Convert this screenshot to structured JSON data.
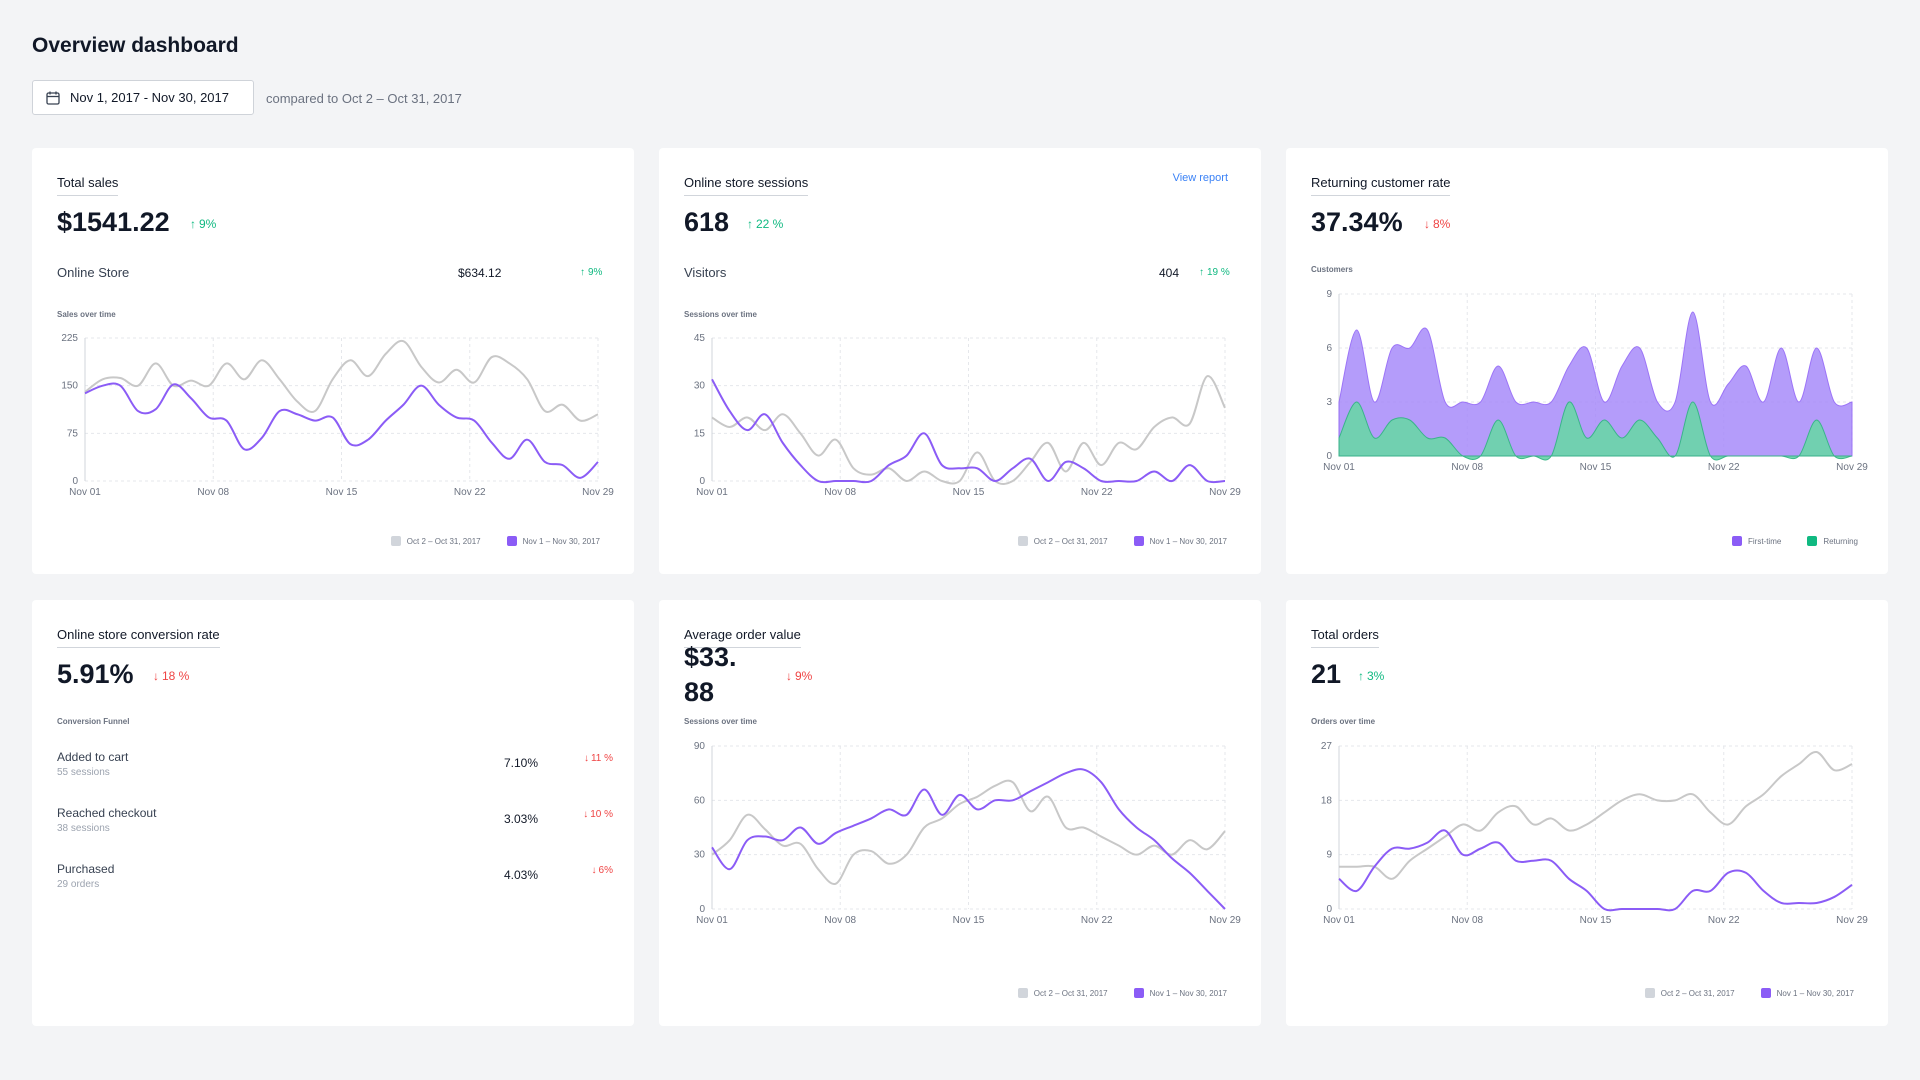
{
  "header": {
    "title": "Overview dashboard",
    "date_range": "Nov 1, 2017 - Nov 30, 2017",
    "compare": "compared to Oct 2 – Oct 31, 2017"
  },
  "colors": {
    "current": "#8b5cf6",
    "previous": "#c8c8c8",
    "first_time": "#a78bfa",
    "returning": "#6ed3ad",
    "up": "#10b981",
    "down": "#ef4444"
  },
  "total_sales": {
    "title": "Total sales",
    "value": "$1541.22",
    "delta": "9%",
    "row_label": "Online Store",
    "row_value": "$634.12",
    "row_delta": "9%",
    "chart_label": "Sales over time",
    "legend_prev": "Oct 2 – Oct 31, 2017",
    "legend_curr": "Nov 1 – Nov 30, 2017"
  },
  "sessions": {
    "title": "Online store sessions",
    "link": "View report",
    "value": "618",
    "delta": "22 %",
    "row_label": "Visitors",
    "row_value": "404",
    "row_delta": "19 %",
    "chart_label": "Sessions over time",
    "legend_prev": "Oct 2 – Oct 31, 2017",
    "legend_curr": "Nov 1 – Nov 30, 2017"
  },
  "returning": {
    "title": "Returning customer rate",
    "value": "37.34%",
    "delta": "8%",
    "chart_label": "Customers",
    "legend_first": "First-time",
    "legend_returning": "Returning"
  },
  "conversion": {
    "title": "Online store conversion rate",
    "value": "5.91%",
    "delta": "18 %",
    "funnel_label": "Conversion Funnel",
    "funnel": [
      {
        "name": "Added to cart",
        "sub": "55 sessions",
        "pct": "7.10%",
        "delta": "11 %"
      },
      {
        "name": "Reached checkout",
        "sub": "38 sessions",
        "pct": "3.03%",
        "delta": "10 %"
      },
      {
        "name": "Purchased",
        "sub": "29 orders",
        "pct": "4.03%",
        "delta": "6%"
      }
    ]
  },
  "aov": {
    "title": "Average order value",
    "value": "$33.88",
    "delta": "9%",
    "chart_label": "Sessions over time",
    "legend_prev": "Oct 2 – Oct 31, 2017",
    "legend_curr": "Nov 1 – Nov 30, 2017"
  },
  "orders": {
    "title": "Total orders",
    "value": "21",
    "delta": "3%",
    "chart_label": "Orders over time",
    "legend_prev": "Oct 2 – Oct 31, 2017",
    "legend_curr": "Nov 1 – Nov 30, 2017"
  },
  "chart_data": [
    {
      "id": "sales",
      "type": "line",
      "xlabel": "",
      "ylabel": "",
      "x_ticks": [
        "Nov 01",
        "Nov 08",
        "Nov 15",
        "Nov 22",
        "Nov 29"
      ],
      "y_ticks": [
        0,
        75,
        150,
        225
      ],
      "ylim": [
        0,
        225
      ],
      "series": [
        {
          "name": "Oct 2 – Oct 31, 2017",
          "values": [
            140,
            160,
            162,
            150,
            185,
            150,
            158,
            150,
            185,
            160,
            190,
            160,
            125,
            110,
            160,
            190,
            165,
            200,
            220,
            180,
            155,
            175,
            155,
            195,
            185,
            160,
            110,
            120,
            95,
            105
          ]
        },
        {
          "name": "Nov 1 – Nov 30, 2017",
          "values": [
            138,
            150,
            150,
            110,
            113,
            152,
            130,
            100,
            95,
            50,
            68,
            110,
            105,
            95,
            100,
            58,
            65,
            95,
            120,
            150,
            120,
            100,
            95,
            60,
            35,
            65,
            30,
            25,
            5,
            30
          ]
        }
      ]
    },
    {
      "id": "sessions",
      "type": "line",
      "xlabel": "",
      "ylabel": "",
      "x_ticks": [
        "Nov 01",
        "Nov 08",
        "Nov 15",
        "Nov 22",
        "Nov 29"
      ],
      "y_ticks": [
        0,
        15,
        30,
        45
      ],
      "ylim": [
        0,
        45
      ],
      "series": [
        {
          "name": "Oct 2 – Oct 31, 2017",
          "values": [
            20,
            17,
            20,
            16,
            21,
            15,
            8,
            13,
            4,
            2,
            4,
            0,
            3,
            0,
            0,
            9,
            0,
            0,
            6,
            12,
            3,
            12,
            5,
            12,
            10,
            17,
            20,
            18,
            33,
            23
          ]
        },
        {
          "name": "Nov 1 – Nov 30, 2017",
          "values": [
            32,
            22,
            16,
            21,
            12,
            5,
            0,
            0,
            0,
            0,
            5,
            8,
            15,
            5,
            4,
            4,
            0,
            4,
            7,
            0,
            6,
            4,
            0,
            0,
            0,
            3,
            0,
            5,
            0,
            0
          ]
        }
      ]
    },
    {
      "id": "customers",
      "type": "area",
      "xlabel": "",
      "ylabel": "",
      "x_ticks": [
        "Nov 01",
        "Nov 08",
        "Nov 15",
        "Nov 22",
        "Nov 29"
      ],
      "y_ticks": [
        0,
        3,
        6,
        9
      ],
      "ylim": [
        0,
        9
      ],
      "series": [
        {
          "name": "First-time",
          "values": [
            3,
            7,
            3,
            6,
            6,
            7,
            3,
            3,
            3,
            5,
            3,
            3,
            3,
            5,
            6,
            3,
            5,
            6,
            3,
            3,
            8,
            3,
            4,
            5,
            3,
            6,
            3,
            6,
            3,
            3
          ]
        },
        {
          "name": "Returning",
          "values": [
            1,
            3,
            1,
            2,
            2,
            1,
            1,
            0,
            0,
            2,
            0,
            0,
            0,
            3,
            1,
            2,
            1,
            2,
            1,
            0,
            3,
            0,
            0,
            0,
            0,
            0,
            0,
            2,
            0,
            0
          ]
        }
      ]
    },
    {
      "id": "aov",
      "type": "line",
      "xlabel": "",
      "ylabel": "",
      "x_ticks": [
        "Nov 01",
        "Nov 08",
        "Nov 15",
        "Nov 22",
        "Nov 29"
      ],
      "y_ticks": [
        0,
        30,
        60,
        90
      ],
      "ylim": [
        0,
        90
      ],
      "series": [
        {
          "name": "Oct 2 – Oct 31, 2017",
          "values": [
            30,
            38,
            52,
            44,
            35,
            36,
            22,
            14,
            30,
            32,
            25,
            30,
            45,
            50,
            58,
            62,
            68,
            70,
            54,
            62,
            45,
            45,
            40,
            35,
            30,
            35,
            30,
            38,
            33,
            43
          ]
        },
        {
          "name": "Nov 1 – Nov 30, 2017",
          "values": [
            34,
            22,
            38,
            40,
            38,
            45,
            36,
            42,
            46,
            50,
            55,
            52,
            66,
            52,
            63,
            55,
            60,
            60,
            65,
            70,
            75,
            77,
            70,
            55,
            45,
            38,
            28,
            20,
            10,
            0
          ]
        }
      ]
    },
    {
      "id": "orders",
      "type": "line",
      "xlabel": "",
      "ylabel": "",
      "x_ticks": [
        "Nov 01",
        "Nov 08",
        "Nov 15",
        "Nov 22",
        "Nov 29"
      ],
      "y_ticks": [
        0,
        9,
        18,
        27
      ],
      "ylim": [
        0,
        27
      ],
      "series": [
        {
          "name": "Oct 2 – Oct 31, 2017",
          "values": [
            7,
            7,
            7,
            5,
            8,
            10,
            12,
            14,
            13,
            16,
            17,
            14,
            15,
            13,
            14,
            16,
            18,
            19,
            18,
            18,
            19,
            16,
            14,
            17,
            19,
            22,
            24,
            26,
            23,
            24
          ]
        },
        {
          "name": "Nov 1 – Nov 30, 2017",
          "values": [
            5,
            3,
            7,
            10,
            10,
            11,
            13,
            9,
            10,
            11,
            8,
            8,
            8,
            5,
            3,
            0,
            0,
            0,
            0,
            0,
            3,
            3,
            6,
            6,
            3,
            1,
            1,
            1,
            2,
            4
          ]
        }
      ]
    }
  ]
}
